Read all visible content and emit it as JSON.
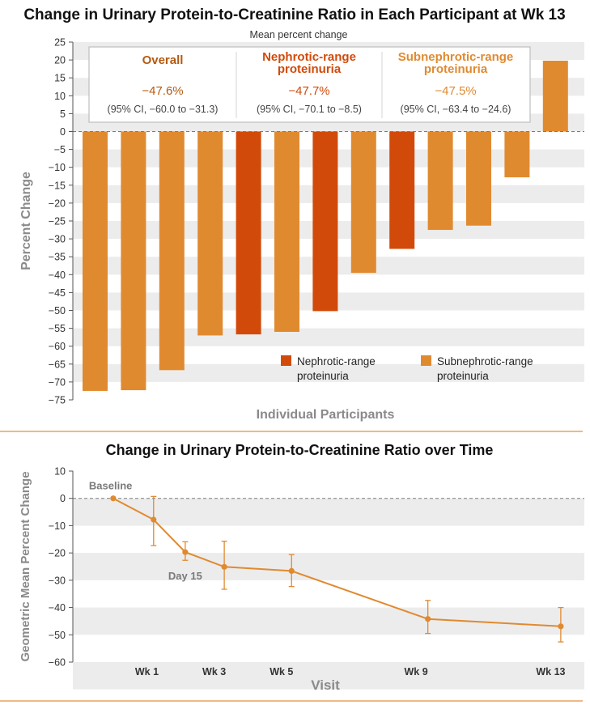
{
  "colors": {
    "nephrotic": "#d24a0a",
    "subnephrotic": "#e08a30",
    "line": "#e08a30",
    "band": "#ececec",
    "divider": "#e8a25c"
  },
  "chart_data": [
    {
      "type": "bar",
      "title": "Change in Urinary Protein-to-Creatinine Ratio in Each Participant at Wk 13",
      "subtitle": "Mean percent change",
      "xlabel": "Individual Participants",
      "ylabel": "Percent Change",
      "ylim": [
        -75,
        25
      ],
      "yticks": [
        "25",
        "20",
        "15",
        "10",
        "5",
        "0",
        "−5",
        "−10",
        "−15",
        "−20",
        "−25",
        "−30",
        "−35",
        "−40",
        "−45",
        "−50",
        "−55",
        "−60",
        "−65",
        "−70",
        "−75"
      ],
      "participants": [
        {
          "value": -72.5,
          "group": "subnephrotic"
        },
        {
          "value": -72.3,
          "group": "subnephrotic"
        },
        {
          "value": -66.7,
          "group": "subnephrotic"
        },
        {
          "value": -57.0,
          "group": "subnephrotic"
        },
        {
          "value": -56.7,
          "group": "nephrotic"
        },
        {
          "value": -56.0,
          "group": "subnephrotic"
        },
        {
          "value": -50.2,
          "group": "nephrotic"
        },
        {
          "value": -39.5,
          "group": "subnephrotic"
        },
        {
          "value": -32.8,
          "group": "nephrotic"
        },
        {
          "value": -27.5,
          "group": "subnephrotic"
        },
        {
          "value": -26.3,
          "group": "subnephrotic"
        },
        {
          "value": -12.8,
          "group": "subnephrotic"
        },
        {
          "value": 19.8,
          "group": "subnephrotic"
        }
      ],
      "summary": [
        {
          "heading": [
            "Overall"
          ],
          "value": "−47.6%",
          "ci": "(95% CI, −60.0 to −31.3)",
          "color": "#b55a10"
        },
        {
          "heading": [
            "Nephrotic-range",
            "proteinuria"
          ],
          "value": "−47.7%",
          "ci": "(95% CI, −70.1 to −8.5)",
          "color": "#d24a0a"
        },
        {
          "heading": [
            "Subnephrotic-range",
            "proteinuria"
          ],
          "value": "−47.5%",
          "ci": "(95% CI, −63.4 to −24.6)",
          "color": "#e08a30"
        }
      ],
      "legend": [
        {
          "group": "nephrotic",
          "lines": [
            "Nephrotic-range",
            "proteinuria"
          ]
        },
        {
          "group": "subnephrotic",
          "lines": [
            "Subnephrotic-range",
            "proteinuria"
          ]
        }
      ]
    },
    {
      "type": "line",
      "title": "Change in Urinary Protein-to-Creatinine Ratio over Time",
      "xlabel": "Visit",
      "ylabel": "Geometric Mean Percent Change",
      "ylim": [
        -60,
        10
      ],
      "yticks": [
        "10",
        "0",
        "−10",
        "−20",
        "−30",
        "−40",
        "−50",
        "−60"
      ],
      "xlim": [
        -1.2,
        14
      ],
      "xticks": [
        {
          "label": "Wk 1",
          "week": 1
        },
        {
          "label": "Wk 3",
          "week": 3
        },
        {
          "label": "Wk 5",
          "week": 5
        },
        {
          "label": "Wk 9",
          "week": 9
        },
        {
          "label": "Wk 13",
          "week": 13
        }
      ],
      "points": [
        {
          "week": 0,
          "value": 0,
          "low": 0,
          "high": 0
        },
        {
          "week": 1.2,
          "value": -7.8,
          "low": -17.3,
          "high": 0.7
        },
        {
          "week": 2.14,
          "value": -19.7,
          "low": -22.7,
          "high": -15.9
        },
        {
          "week": 3.3,
          "value": -25.1,
          "low": -33.3,
          "high": -15.7
        },
        {
          "week": 5.3,
          "value": -26.6,
          "low": -32.3,
          "high": -20.6
        },
        {
          "week": 9.35,
          "value": -44.2,
          "low": -49.5,
          "high": -37.4
        },
        {
          "week": 13.3,
          "value": -46.9,
          "low": -52.6,
          "high": -40.0
        }
      ],
      "annotations": [
        {
          "text": "Baseline",
          "week": 0
        },
        {
          "text": "Day 15",
          "week": 2.14
        }
      ]
    }
  ]
}
